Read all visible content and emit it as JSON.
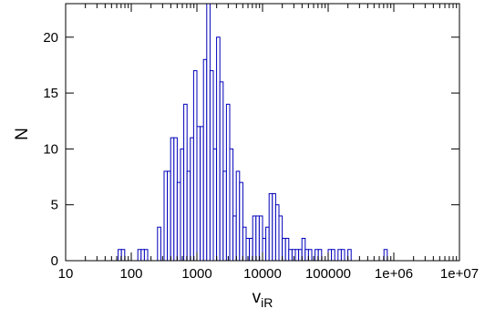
{
  "chart_data": {
    "type": "bar",
    "subtype": "histogram",
    "xscale": "log",
    "xlim": [
      10,
      10000000
    ],
    "ylim": [
      0,
      23
    ],
    "grid": false,
    "xlabel_main": "v",
    "xlabel_sub": "iR",
    "ylabel": "N",
    "xticks": [
      {
        "value": 10,
        "label": "10"
      },
      {
        "value": 100,
        "label": "100"
      },
      {
        "value": 1000,
        "label": "1000"
      },
      {
        "value": 10000,
        "label": "10000"
      },
      {
        "value": 100000,
        "label": "100000"
      },
      {
        "value": 1000000,
        "label": "1e+06"
      },
      {
        "value": 10000000,
        "label": "1e+07"
      }
    ],
    "yticks": [
      {
        "value": 0,
        "label": "0"
      },
      {
        "value": 5,
        "label": "5"
      },
      {
        "value": 10,
        "label": "10"
      },
      {
        "value": 15,
        "label": "15"
      },
      {
        "value": 20,
        "label": "20"
      }
    ],
    "bins": {
      "log10_start": 1.0,
      "log10_width": 0.05,
      "counts": [
        0,
        0,
        0,
        0,
        0,
        0,
        0,
        0,
        0,
        0,
        0,
        0,
        0,
        0,
        0,
        0,
        1,
        1,
        0,
        0,
        0,
        0,
        1,
        1,
        1,
        0,
        0,
        0,
        3,
        0,
        8,
        8,
        11,
        11,
        7,
        10,
        14,
        8,
        11,
        17,
        12,
        12,
        18,
        23,
        17,
        10,
        20,
        16,
        8,
        14,
        10,
        4,
        8,
        7,
        3,
        2,
        2,
        4,
        4,
        4,
        2,
        3,
        6,
        6,
        5,
        4,
        2,
        2,
        1,
        1,
        1,
        1,
        2,
        1,
        1,
        0,
        1,
        1,
        0,
        0,
        1,
        1,
        0,
        1,
        1,
        0,
        1,
        0,
        0,
        0,
        0,
        0,
        0,
        0,
        0,
        0,
        0,
        1,
        0,
        0,
        0,
        0,
        0,
        0,
        0,
        0,
        0,
        0,
        0,
        0,
        0,
        0,
        0,
        0,
        0,
        0,
        0,
        0,
        0,
        0
      ]
    },
    "colors": {
      "bar_stroke": "#0000bb",
      "bar_fill": "#ffffff",
      "axis": "#000000"
    }
  }
}
